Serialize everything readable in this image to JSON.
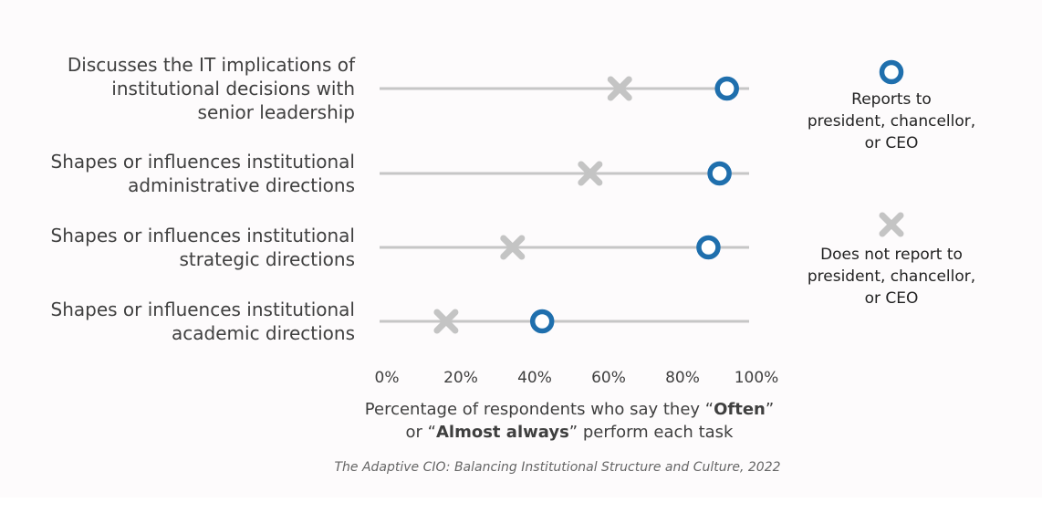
{
  "chart_data": {
    "type": "dot",
    "categories": [
      [
        "Discusses the IT implications of",
        "institutional decisions with",
        "senior leadership"
      ],
      [
        "Shapes or influences institutional",
        "administrative directions"
      ],
      [
        "Shapes or influences institutional",
        "strategic directions"
      ],
      [
        "Shapes or influences institutional",
        "academic directions"
      ]
    ],
    "series": [
      {
        "name": [
          "Reports to",
          "president, chancellor,",
          "or CEO"
        ],
        "marker": "circle",
        "color": "#1f6fad",
        "values": [
          94,
          92,
          89,
          44
        ]
      },
      {
        "name": [
          "Does not report to",
          "president, chancellor,",
          "or CEO"
        ],
        "marker": "x",
        "color": "#c4c4c4",
        "values": [
          65,
          57,
          36,
          18
        ]
      }
    ],
    "xlim": [
      0,
      100
    ],
    "x_ticks": [
      "0%",
      "20%",
      "40%",
      "60%",
      "80%",
      "100%"
    ],
    "xlabel": {
      "line1_prefix": "Percentage of respondents who say they “",
      "line1_bold": "Often",
      "line1_suffix": "”",
      "line2_prefix": "or “",
      "line2_bold": "Almost always",
      "line2_suffix": "” perform each task"
    },
    "legend_position": "right",
    "grid": false
  },
  "source": "The Adaptive CIO: Balancing Institutional Structure and Culture, 2022"
}
